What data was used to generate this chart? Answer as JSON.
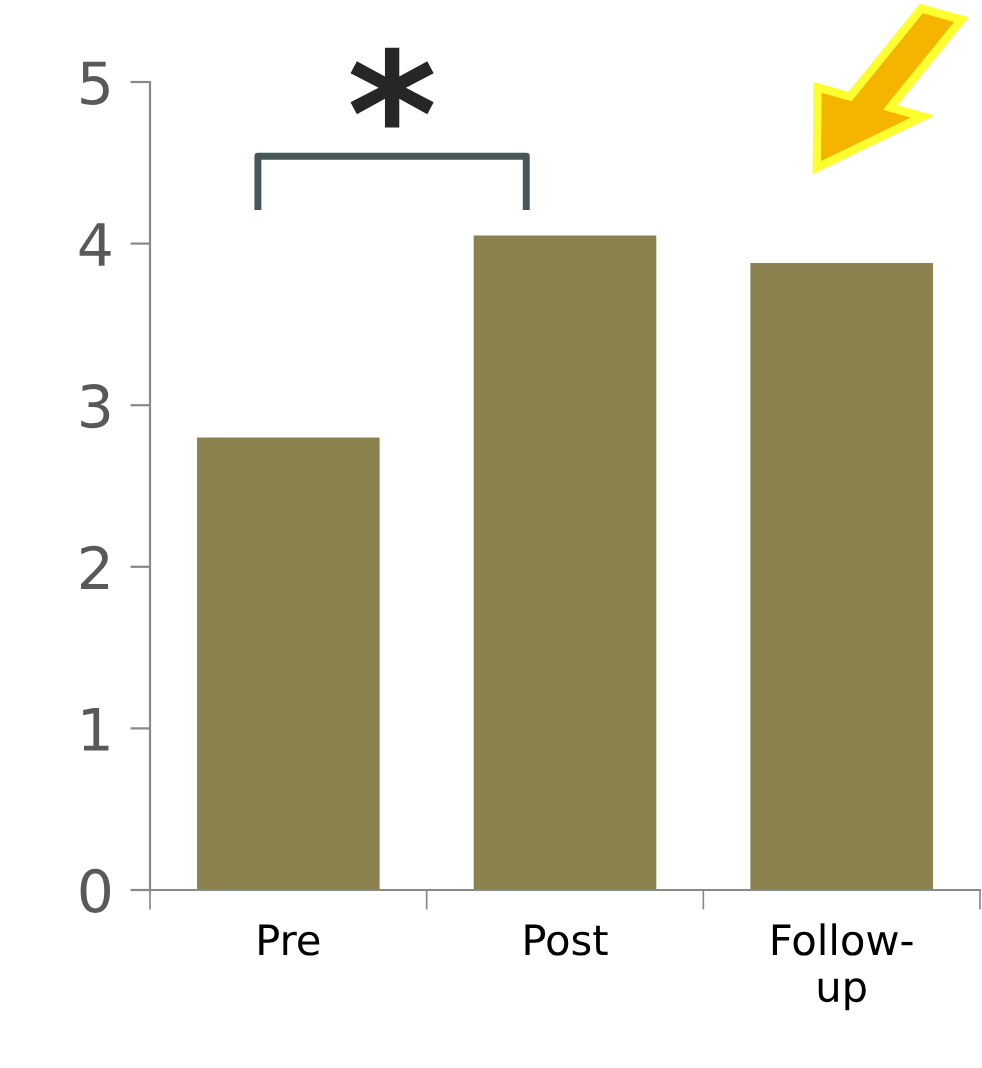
{
  "chart_data": {
    "type": "bar",
    "categories": [
      "Pre",
      "Post",
      "Follow-\nup"
    ],
    "values": [
      2.8,
      4.05,
      3.88
    ],
    "color": "#8c8250",
    "ylim": [
      0,
      5
    ],
    "yticks": [
      0,
      1,
      2,
      3,
      4,
      5
    ],
    "grid": false,
    "legend": false,
    "annotations": [
      "*"
    ]
  }
}
